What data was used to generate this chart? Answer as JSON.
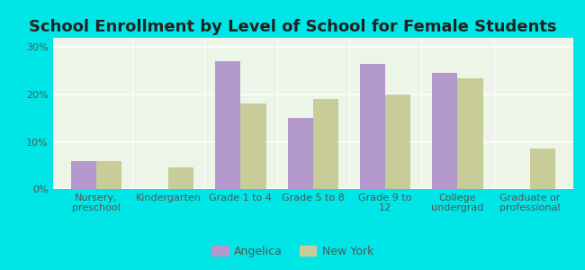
{
  "title": "School Enrollment by Level of School for Female Students",
  "categories": [
    "Nursery,\npreschool",
    "Kindergarten",
    "Grade 1 to 4",
    "Grade 5 to 8",
    "Grade 9 to\n12",
    "College\nundergrad",
    "Graduate or\nprofessional"
  ],
  "angelica_values": [
    6.0,
    0.0,
    27.0,
    15.0,
    26.5,
    24.5,
    0.0
  ],
  "newyork_values": [
    6.0,
    4.5,
    18.0,
    19.0,
    20.0,
    23.5,
    8.5
  ],
  "angelica_color": "#b399cc",
  "newyork_color": "#c8cc99",
  "background_color": "#00e5e5",
  "plot_bg_color": "#edf5e8",
  "ylim": [
    0,
    32
  ],
  "yticks": [
    0,
    10,
    20,
    30
  ],
  "ytick_labels": [
    "0%",
    "10%",
    "20%",
    "30%"
  ],
  "bar_width": 0.35,
  "legend_labels": [
    "Angelica",
    "New York"
  ],
  "title_fontsize": 13,
  "tick_fontsize": 8,
  "legend_fontsize": 9
}
